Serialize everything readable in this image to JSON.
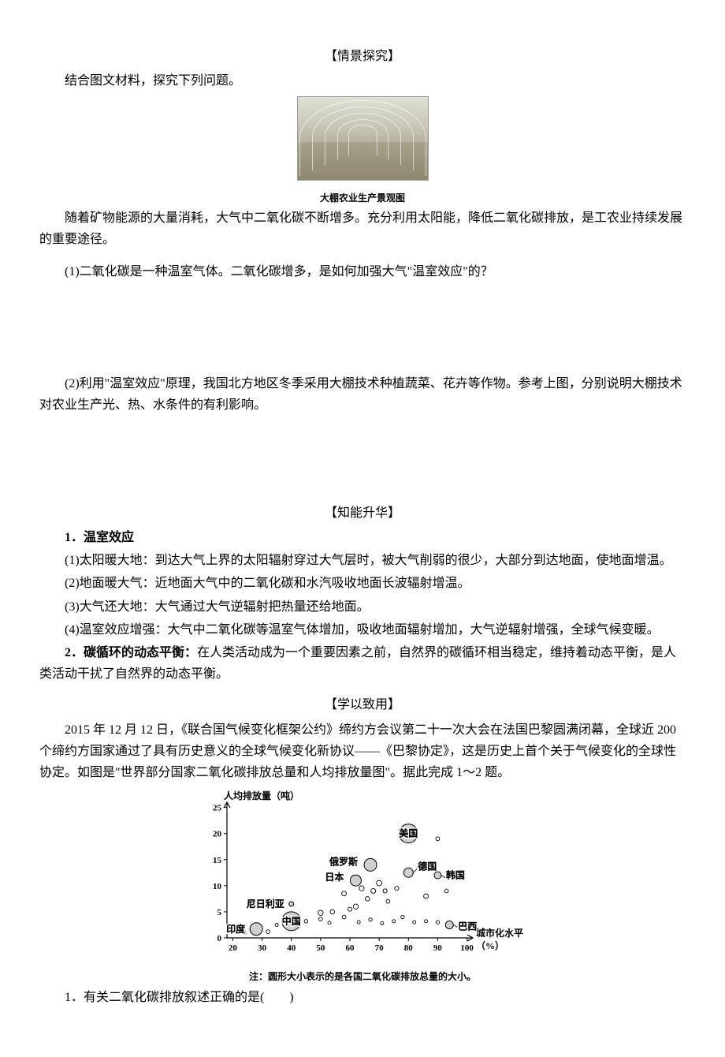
{
  "sections": {
    "inquiry_title": "【情景探究】",
    "intro": "结合图文材料，探究下列问题。",
    "fig1_caption": "大棚农业生产景观图",
    "passage1": "随着矿物能源的大量消耗，大气中二氧化碳不断增多。充分利用太阳能，降低二氧化碳排放，是工农业持续发展的重要途径。",
    "q1": "(1)二氧化碳是一种温室气体。二氧化碳增多，是如何加强大气\"温室效应\"的？",
    "q2": "(2)利用\"温室效应\"原理，我国北方地区冬季采用大棚技术种植蔬菜、花卉等作物。参考上图，分别说明大棚技术对农业生产光、热、水条件的有利影响。",
    "upgrade_title": "【知能升华】",
    "point1_title": "1．温室效应",
    "point1_items": {
      "a": "(1)太阳暖大地：到达大气上界的太阳辐射穿过大气层时，被大气削弱的很少，大部分到达地面，使地面增温。",
      "b": "(2)地面暖大气：近地面大气中的二氧化碳和水汽吸收地面长波辐射增温。",
      "c": "(3)大气还大地：大气通过大气逆辐射把热量还给地面。",
      "d": "(4)温室效应增强：大气中二氧化碳等温室气体增加，吸收地面辐射增加，大气逆辐射增强，全球气候变暖。"
    },
    "point2": "2．碳循环的动态平衡：在人类活动成为一个重要因素之前，自然界的碳循环相当稳定，维持着动态平衡，是人类活动干扰了自然界的动态平衡。",
    "apply_title": "【学以致用】",
    "apply_passage": "2015 年 12 月 12 日，《联合国气候变化框架公约》缔约方会议第二十一次大会在法国巴黎圆满闭幕，全球近 200 个缔约方国家通过了具有历史意义的全球气候变化新协议——《巴黎协定》，这是历史上首个关于气候变化的全球性协定。如图是\"世界部分国家二氧化碳排放总量和人均排放量图\"。据此完成 1～2 题。",
    "exercise1": "1．有关二氧化碳排放叙述正确的是(　　)"
  },
  "chart": {
    "type": "scatter-bubble",
    "x_axis_label": "城市化水平",
    "x_axis_unit": "（%）",
    "y_axis_label": "人均排放量（吨）",
    "x_ticks": [
      20,
      30,
      40,
      50,
      60,
      70,
      80,
      90,
      100
    ],
    "y_ticks": [
      0,
      5,
      10,
      15,
      20,
      25
    ],
    "xlim": [
      18,
      102
    ],
    "ylim": [
      0,
      26
    ],
    "axis_color": "#000000",
    "label_fontsize": 12,
    "tick_fontsize": 11,
    "bubble_stroke": "#000000",
    "bubble_fill_labeled": "#cfcfcf",
    "bubble_fill_unlabeled": "none",
    "note": "注：圆形大小表示的是各国二氧化碳排放总量的大小。",
    "labeled_points": [
      {
        "name": "印度",
        "x": 28,
        "y": 1.7,
        "r": 8
      },
      {
        "name": "中国",
        "x": 40,
        "y": 3.2,
        "r": 12
      },
      {
        "name": "尼日利亚",
        "x": 40,
        "y": 6.5,
        "r": 3
      },
      {
        "name": "日本",
        "x": 62,
        "y": 11,
        "r": 7
      },
      {
        "name": "俄罗斯",
        "x": 67,
        "y": 14,
        "r": 8
      },
      {
        "name": "德国",
        "x": 80,
        "y": 12.5,
        "r": 6
      },
      {
        "name": "韩国",
        "x": 90,
        "y": 12,
        "r": 4.5
      },
      {
        "name": "美国",
        "x": 80,
        "y": 20,
        "r": 12
      },
      {
        "name": "巴西",
        "x": 94,
        "y": 2.5,
        "r": 5
      }
    ],
    "unlabeled_points": [
      {
        "x": 24,
        "y": 1.0,
        "r": 2.2
      },
      {
        "x": 32,
        "y": 1.2,
        "r": 2.4
      },
      {
        "x": 35,
        "y": 2.5,
        "r": 2.0
      },
      {
        "x": 45,
        "y": 3.2,
        "r": 2.2
      },
      {
        "x": 50,
        "y": 3.6,
        "r": 2.4
      },
      {
        "x": 50,
        "y": 4.8,
        "r": 3.2
      },
      {
        "x": 53,
        "y": 2.9,
        "r": 2.0
      },
      {
        "x": 54,
        "y": 5.0,
        "r": 2.8
      },
      {
        "x": 55,
        "y": 14,
        "r": 2.0
      },
      {
        "x": 58,
        "y": 4.0,
        "r": 2.4
      },
      {
        "x": 58,
        "y": 8.5,
        "r": 3.0
      },
      {
        "x": 60,
        "y": 5.5,
        "r": 2.6
      },
      {
        "x": 62,
        "y": 6.0,
        "r": 3.2
      },
      {
        "x": 63,
        "y": 3.0,
        "r": 2.0
      },
      {
        "x": 64,
        "y": 9.5,
        "r": 3.2
      },
      {
        "x": 66,
        "y": 7.5,
        "r": 2.8
      },
      {
        "x": 67,
        "y": 3.5,
        "r": 2.2
      },
      {
        "x": 68,
        "y": 9.0,
        "r": 3.0
      },
      {
        "x": 70,
        "y": 10.5,
        "r": 3.4
      },
      {
        "x": 71,
        "y": 2.8,
        "r": 2.0
      },
      {
        "x": 72,
        "y": 9.0,
        "r": 2.6
      },
      {
        "x": 73,
        "y": 7.0,
        "r": 2.4
      },
      {
        "x": 75,
        "y": 3.2,
        "r": 2.0
      },
      {
        "x": 76,
        "y": 9.5,
        "r": 2.6
      },
      {
        "x": 78,
        "y": 4.0,
        "r": 2.2
      },
      {
        "x": 82,
        "y": 3.0,
        "r": 2.0
      },
      {
        "x": 86,
        "y": 8.0,
        "r": 3.0
      },
      {
        "x": 86,
        "y": 3.2,
        "r": 2.0
      },
      {
        "x": 90,
        "y": 19.0,
        "r": 2.4
      },
      {
        "x": 90,
        "y": 3.0,
        "r": 2.2
      },
      {
        "x": 93,
        "y": 9.0,
        "r": 2.4
      }
    ],
    "label_positions": {
      "印度": {
        "anchor": "left",
        "dx": -6,
        "dy": 4
      },
      "中国": {
        "anchor": "inside",
        "dx": 0,
        "dy": 4
      },
      "尼日利亚": {
        "anchor": "left",
        "dx": -6,
        "dy": 4
      },
      "日本": {
        "anchor": "left",
        "dx": -8,
        "dy": 0
      },
      "俄罗斯": {
        "anchor": "left",
        "dx": -8,
        "dy": 0
      },
      "德国": {
        "anchor": "right",
        "dx": 6,
        "dy": -4
      },
      "韩国": {
        "anchor": "right",
        "dx": 6,
        "dy": 4
      },
      "美国": {
        "anchor": "inside",
        "dx": 0,
        "dy": 4
      },
      "巴西": {
        "anchor": "right",
        "dx": 6,
        "dy": 6
      }
    }
  }
}
